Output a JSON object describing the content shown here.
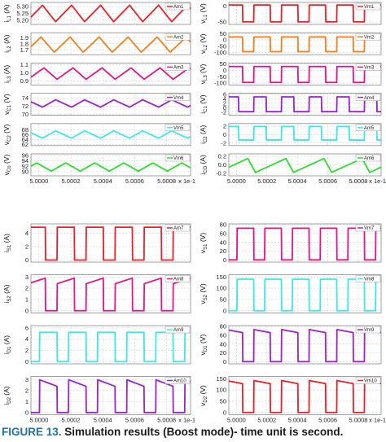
{
  "figure": {
    "caption_label": "FIGURE 13.",
    "caption_text": "Simulation results (Boost mode)- time unit is second."
  },
  "x_axis": {
    "ticks": [
      5.0,
      5.0002,
      5.0004,
      5.0006,
      5.0008
    ],
    "tick_labels": [
      "5.0000",
      "5.0002",
      "5.0004",
      "5.0006",
      "5.0008"
    ],
    "multiplier": "x 1e-1"
  },
  "chart_data": [
    {
      "type": "line",
      "group": "top-left",
      "ylabel": "i_L1 (A)",
      "legend": "Am1",
      "color": "#e8202a",
      "ylim": [
        5.17,
        5.33
      ],
      "yticks": [
        5.2,
        5.25,
        5.3
      ],
      "ytick_labels": [
        "5.20",
        "5.25",
        "5.30"
      ],
      "waveform": "triangle",
      "periods": 5.5,
      "min": 5.19,
      "max": 5.31,
      "duty": 0.55,
      "phase": 0.15,
      "xtick_labels": false
    },
    {
      "type": "line",
      "group": "top-left",
      "ylabel": "i_L2 (A)",
      "legend": "Am2",
      "color": "#f2801f",
      "ylim": [
        1.62,
        1.98
      ],
      "yticks": [
        1.7,
        1.8,
        1.9
      ],
      "ytick_labels": [
        "1.7",
        "1.8",
        "1.9"
      ],
      "waveform": "triangle",
      "periods": 5.5,
      "min": 1.66,
      "max": 1.91,
      "duty": 0.55,
      "phase": 0.2,
      "xtick_labels": false
    },
    {
      "type": "line",
      "group": "top-left",
      "ylabel": "i_L3 (A)",
      "legend": "Am3",
      "color": "#e0168a",
      "ylim": [
        0.85,
        1.12
      ],
      "yticks": [
        0.9,
        1.0,
        1.1
      ],
      "ytick_labels": [
        "0.9",
        "1.0",
        "1.1"
      ],
      "waveform": "triangle",
      "periods": 5.5,
      "min": 0.92,
      "max": 1.06,
      "duty": 0.55,
      "phase": 0.1,
      "xtick_labels": false
    },
    {
      "type": "line",
      "group": "top-left",
      "ylabel": "v_C1 (V)",
      "legend": "Vm4",
      "color": "#9b24c7",
      "ylim": [
        69.8,
        75.2
      ],
      "yticks": [
        70,
        72,
        74
      ],
      "ytick_labels": [
        "70",
        "72",
        "74"
      ],
      "waveform": "triangle",
      "periods": 5.5,
      "min": 71.8,
      "max": 73.6,
      "duty": 0.45,
      "phase": 0.6,
      "xtick_labels": false
    },
    {
      "type": "line",
      "group": "top-left",
      "ylabel": "v_C2 (V)",
      "legend": "Vm5",
      "color": "#3fe6e8",
      "ylim": [
        61.5,
        70.5
      ],
      "yticks": [
        62,
        64,
        66,
        68
      ],
      "ytick_labels": [
        "62",
        "64",
        "66",
        "68"
      ],
      "waveform": "triangle",
      "periods": 5.5,
      "min": 64.5,
      "max": 67.5,
      "duty": 0.45,
      "phase": 0.6,
      "xtick_labels": false
    },
    {
      "type": "line",
      "group": "top-left",
      "ylabel": "v_Co (V)",
      "legend": "Vm6",
      "color": "#2edb2e",
      "ylim": [
        88.5,
        96.5
      ],
      "yticks": [
        90,
        92,
        94,
        96
      ],
      "ytick_labels": [
        "90",
        "92",
        "94",
        "96"
      ],
      "waveform": "triangle",
      "periods": 5.5,
      "min": 90.2,
      "max": 93.2,
      "duty": 0.5,
      "phase": 0.3,
      "xtick_labels": true
    },
    {
      "type": "line",
      "group": "top-right",
      "ylabel": "v_L1 (V)",
      "legend": "Vm1",
      "color": "#e8202a",
      "ylim": [
        -58,
        12
      ],
      "yticks": [
        -50,
        0
      ],
      "ytick_labels": [
        "-50",
        "0"
      ],
      "waveform": "square",
      "periods": 5.5,
      "min": -50,
      "max": 4,
      "duty": 0.6,
      "phase": 0.1,
      "xtick_labels": false
    },
    {
      "type": "line",
      "group": "top-right",
      "ylabel": "v_L2 (V)",
      "legend": "Vm2",
      "color": "#f2801f",
      "ylim": [
        -118,
        58
      ],
      "yticks": [
        -100,
        -50,
        0,
        50
      ],
      "ytick_labels": [
        "-100",
        "-50",
        "0",
        "50"
      ],
      "waveform": "square",
      "periods": 5.5,
      "min": -94,
      "max": 24,
      "duty": 0.6,
      "phase": 0.1,
      "xtick_labels": false
    },
    {
      "type": "line",
      "group": "top-right",
      "ylabel": "v_L3 (V)",
      "legend": "Vm3",
      "color": "#e0168a",
      "ylim": [
        -115,
        58
      ],
      "yticks": [
        -100,
        -50,
        0,
        50
      ],
      "ytick_labels": [
        "-100",
        "-50",
        "0",
        "50"
      ],
      "waveform": "square",
      "periods": 5.5,
      "min": -95,
      "max": 30,
      "duty": 0.6,
      "phase": 0.1,
      "xtick_labels": false
    },
    {
      "type": "line",
      "group": "top-right",
      "ylabel": "i_C1 (V)",
      "legend": "Am4",
      "color": "#9b24c7",
      "ylim": [
        -3.4,
        6.4
      ],
      "yticks": [
        -2,
        0,
        2,
        4,
        6
      ],
      "ytick_labels": [
        "-2",
        "0",
        "2",
        "4",
        "6"
      ],
      "waveform": "square",
      "periods": 5.5,
      "min": -1.8,
      "max": 4.8,
      "duty": 0.45,
      "phase": 0.1,
      "xtick_labels": false
    },
    {
      "type": "line",
      "group": "top-right",
      "ylabel": "i_C2 (A)",
      "legend": "Am5",
      "color": "#3fe6e8",
      "ylim": [
        -2.6,
        2.6
      ],
      "yticks": [
        -2,
        0,
        2
      ],
      "ytick_labels": [
        "-2",
        "0",
        "2"
      ],
      "waveform": "square",
      "periods": 5.5,
      "min": -1.3,
      "max": 1.9,
      "duty": 0.45,
      "phase": 0.1,
      "xtick_labels": false
    },
    {
      "type": "line",
      "group": "top-right",
      "ylabel": "i_CO (A)",
      "legend": "Am6",
      "color": "#2edb2e",
      "ylim": [
        -0.26,
        0.26
      ],
      "yticks": [
        -0.2,
        0,
        0.2
      ],
      "ytick_labels": [
        "-0.2",
        "0.0",
        "0.2"
      ],
      "waveform": "triangle",
      "periods": 4,
      "min": -0.18,
      "max": 0.15,
      "duty": 0.8,
      "phase": 0.3,
      "xtick_labels": true
    },
    {
      "type": "line",
      "group": "bottom-left",
      "ylabel": "i_S1 (A)",
      "legend": "Am7",
      "color": "#e8202a",
      "ylim": [
        -0.3,
        5.4
      ],
      "yticks": [
        0,
        2,
        4
      ],
      "ytick_labels": [
        "0",
        "2",
        "4"
      ],
      "waveform": "square",
      "periods": 5.5,
      "min": 0,
      "max": 4.9,
      "duty": 0.6,
      "phase": 0.1,
      "xtick_labels": false
    },
    {
      "type": "line",
      "group": "bottom-left",
      "ylabel": "i_S2 (A)",
      "legend": "Am8",
      "color": "#e0168a",
      "ylim": [
        -0.2,
        3.2
      ],
      "yticks": [
        0,
        1,
        2,
        3
      ],
      "ytick_labels": [
        "0",
        "1",
        "2",
        "3"
      ],
      "waveform": "ramp-pulse",
      "periods": 5.5,
      "min": 0,
      "max": 2.9,
      "low_level": 2.4,
      "duty": 0.6,
      "phase": 0.1,
      "xtick_labels": false
    },
    {
      "type": "line",
      "group": "bottom-left",
      "ylabel": "i_D1 (A)",
      "legend": "Am9",
      "color": "#3fe6e8",
      "ylim": [
        -0.4,
        6.4
      ],
      "yticks": [
        0,
        2,
        4,
        6
      ],
      "ytick_labels": [
        "0",
        "2",
        "4",
        "6"
      ],
      "waveform": "square-inv",
      "periods": 5.5,
      "min": 0,
      "max": 5.2,
      "duty": 0.4,
      "phase": 0.1,
      "xtick_labels": false
    },
    {
      "type": "line",
      "group": "bottom-left",
      "ylabel": "i_D2 (A)",
      "legend": "Am10",
      "color": "#9b24c7",
      "ylim": [
        -0.2,
        3.3
      ],
      "yticks": [
        0,
        1,
        2,
        3
      ],
      "ytick_labels": [
        "0",
        "1",
        "2",
        "3"
      ],
      "waveform": "ramp-pulse-inv",
      "periods": 5.5,
      "min": 0,
      "max": 3.0,
      "low_level": 2.4,
      "duty": 0.4,
      "phase": 0.1,
      "xtick_labels": true
    },
    {
      "type": "line",
      "group": "bottom-right",
      "ylabel": "v_S1 (V)",
      "legend": "Vm7",
      "color": "#e0168a",
      "ylim": [
        -5,
        82
      ],
      "yticks": [
        0,
        20,
        40,
        60,
        80
      ],
      "ytick_labels": [
        "0",
        "20",
        "40",
        "60",
        "80"
      ],
      "waveform": "square-inv",
      "periods": 5.5,
      "min": 0,
      "max": 72,
      "duty": 0.4,
      "phase": 0.1,
      "xtick_labels": false
    },
    {
      "type": "line",
      "group": "bottom-right",
      "ylabel": "v_S2 (V)",
      "legend": "Vm8",
      "color": "#3fe6e8",
      "ylim": [
        -10,
        160
      ],
      "yticks": [
        0,
        50,
        100,
        150
      ],
      "ytick_labels": [
        "0",
        "50",
        "100",
        "150"
      ],
      "waveform": "square-inv",
      "periods": 5.5,
      "min": 0,
      "max": 140,
      "duty": 0.4,
      "phase": 0.1,
      "xtick_labels": false
    },
    {
      "type": "line",
      "group": "bottom-right",
      "ylabel": "v_D1 (V)",
      "legend": "Vm9",
      "color": "#9b24c7",
      "ylim": [
        -5,
        82
      ],
      "yticks": [
        0,
        20,
        40,
        60,
        80
      ],
      "ytick_labels": [
        "0",
        "20",
        "40",
        "60",
        "80"
      ],
      "waveform": "square-droop",
      "periods": 5.5,
      "min": 0,
      "max": 73,
      "low_level": 66,
      "duty": 0.6,
      "phase": 0.1,
      "xtick_labels": false
    },
    {
      "type": "line",
      "group": "bottom-right",
      "ylabel": "v_D2 (V)",
      "legend": "Vm10",
      "color": "#e8202a",
      "ylim": [
        -10,
        160
      ],
      "yticks": [
        0,
        50,
        100,
        150
      ],
      "ytick_labels": [
        "0",
        "50",
        "100",
        "150"
      ],
      "waveform": "square-droop",
      "periods": 5.5,
      "min": 0,
      "max": 142,
      "low_level": 128,
      "duty": 0.6,
      "phase": 0.1,
      "xtick_labels": true
    }
  ]
}
